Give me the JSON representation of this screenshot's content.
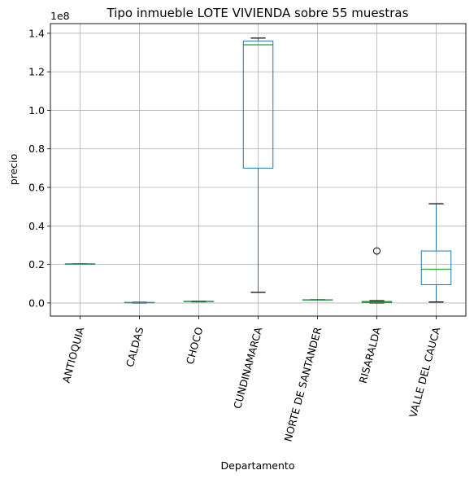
{
  "chart_data": {
    "type": "box",
    "title": "Tipo inmueble LOTE VIVIENDA sobre 55 muestras",
    "xlabel": "Departamento",
    "ylabel": "precio",
    "y_offset_text": "1e8",
    "y_scale": 100000000,
    "ylim": [
      -0.068,
      1.45
    ],
    "y_ticks": [
      0.0,
      0.2,
      0.4,
      0.6,
      0.8,
      1.0,
      1.2,
      1.4
    ],
    "y_tick_labels": [
      "0.0",
      "0.2",
      "0.4",
      "0.6",
      "0.8",
      "1.0",
      "1.2",
      "1.4"
    ],
    "grid": true,
    "categories": [
      "ANTIOQUIA",
      "CALDAS",
      "CHOCO",
      "CUNDINAMARCA",
      "NORTE DE SANTANDER",
      "RISARALDA",
      "VALLE DEL CAUCA"
    ],
    "boxes": [
      {
        "category": "ANTIOQUIA",
        "whisker_low": 0.203,
        "q1": 0.203,
        "median": 0.203,
        "q3": 0.203,
        "whisker_high": 0.203,
        "outliers": []
      },
      {
        "category": "CALDAS",
        "whisker_low": 0.0,
        "q1": 0.001,
        "median": 0.002,
        "q3": 0.003,
        "whisker_high": 0.004,
        "outliers": []
      },
      {
        "category": "CHOCO",
        "whisker_low": 0.006,
        "q1": 0.007,
        "median": 0.008,
        "q3": 0.009,
        "whisker_high": 0.01,
        "outliers": []
      },
      {
        "category": "CUNDINAMARCA",
        "whisker_low": 0.055,
        "q1": 0.7,
        "median": 1.34,
        "q3": 1.36,
        "whisker_high": 1.375,
        "outliers": []
      },
      {
        "category": "NORTE DE SANTANDER",
        "whisker_low": 0.015,
        "q1": 0.015,
        "median": 0.016,
        "q3": 0.017,
        "whisker_high": 0.017,
        "outliers": []
      },
      {
        "category": "RISARALDA",
        "whisker_low": 0.0,
        "q1": 0.002,
        "median": 0.005,
        "q3": 0.008,
        "whisker_high": 0.012,
        "outliers": [
          0.27
        ]
      },
      {
        "category": "VALLE DEL CAUCA",
        "whisker_low": 0.005,
        "q1": 0.095,
        "median": 0.175,
        "q3": 0.27,
        "whisker_high": 0.515,
        "outliers": []
      }
    ],
    "colors": {
      "box": "#1f77b4",
      "median": "#2ca02c",
      "whisker_cap": "#000000",
      "grid": "#b0b0b0",
      "outlier": "#000000"
    }
  }
}
